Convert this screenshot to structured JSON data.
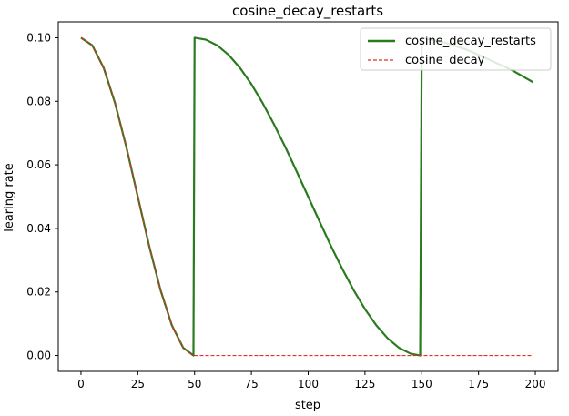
{
  "chart_data": {
    "type": "line",
    "title": "cosine_decay_restarts",
    "xlabel": "step",
    "ylabel": "learing rate",
    "xlim": [
      -10,
      210
    ],
    "ylim": [
      -0.005,
      0.105
    ],
    "xticks": [
      0,
      25,
      50,
      75,
      100,
      125,
      150,
      175,
      200
    ],
    "yticks": [
      "0.00",
      "0.02",
      "0.04",
      "0.06",
      "0.08",
      "0.10"
    ],
    "grid": false,
    "legend_position": "top-right",
    "series": [
      {
        "name": "cosine_decay_restarts",
        "color": "#2a7a1f",
        "style": "solid",
        "points": [
          [
            0,
            0.1
          ],
          [
            5,
            0.0976
          ],
          [
            10,
            0.0905
          ],
          [
            15,
            0.0794
          ],
          [
            20,
            0.0655
          ],
          [
            25,
            0.05
          ],
          [
            30,
            0.0345
          ],
          [
            35,
            0.0206
          ],
          [
            40,
            0.0095
          ],
          [
            45,
            0.0024
          ],
          [
            49.5,
            0.0
          ],
          [
            50,
            0.1
          ],
          [
            55,
            0.0994
          ],
          [
            60,
            0.0976
          ],
          [
            65,
            0.0946
          ],
          [
            70,
            0.0905
          ],
          [
            75,
            0.0854
          ],
          [
            80,
            0.0794
          ],
          [
            85,
            0.0727
          ],
          [
            90,
            0.0655
          ],
          [
            95,
            0.0578
          ],
          [
            100,
            0.05
          ],
          [
            105,
            0.0422
          ],
          [
            110,
            0.0345
          ],
          [
            115,
            0.0273
          ],
          [
            120,
            0.0206
          ],
          [
            125,
            0.0146
          ],
          [
            130,
            0.0095
          ],
          [
            135,
            0.0054
          ],
          [
            140,
            0.0024
          ],
          [
            145,
            0.0006
          ],
          [
            149.3,
            0.0
          ],
          [
            150,
            0.1
          ],
          [
            160,
            0.0985
          ],
          [
            170,
            0.0962
          ],
          [
            180,
            0.093
          ],
          [
            190,
            0.0897
          ],
          [
            199,
            0.086
          ]
        ]
      },
      {
        "name": "cosine_decay",
        "color": "#e0302a",
        "style": "dashed",
        "points": [
          [
            0,
            0.1
          ],
          [
            5,
            0.0976
          ],
          [
            10,
            0.0905
          ],
          [
            15,
            0.0794
          ],
          [
            20,
            0.0655
          ],
          [
            25,
            0.05
          ],
          [
            30,
            0.0345
          ],
          [
            35,
            0.0206
          ],
          [
            40,
            0.0095
          ],
          [
            45,
            0.0024
          ],
          [
            50,
            0.0
          ],
          [
            199,
            0.0
          ]
        ]
      }
    ]
  }
}
